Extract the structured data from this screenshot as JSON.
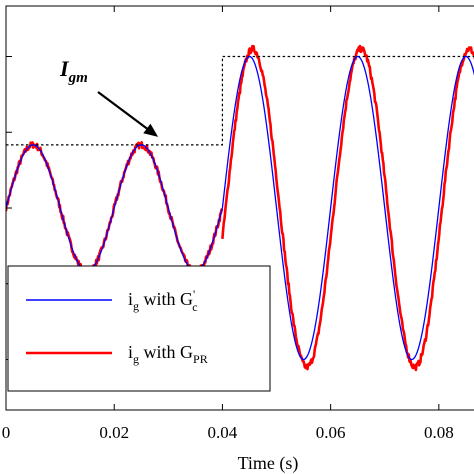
{
  "chart_data": {
    "type": "line",
    "xlabel": "Time (s)",
    "xlim": [
      0,
      0.095
    ],
    "ylim": [
      -1.6,
      1.6
    ],
    "x_ticks": [
      0,
      0.02,
      0.04,
      0.06,
      0.08
    ],
    "x_tick_labels": [
      "0",
      "0.02",
      "0.04",
      "0.06",
      "0.08"
    ],
    "y_ticks": [
      -1.2,
      -0.6,
      0,
      0.6,
      1.2
    ],
    "grid": false,
    "legend_position": "bottom-left",
    "annotation": {
      "label": "I",
      "label_subscript": "gm",
      "target": [
        0.027,
        0.5
      ]
    },
    "series": [
      {
        "name": "i_g with G_c'",
        "legend_main": "i",
        "legend_sub": "g",
        "legend_mid": " with G",
        "legend_sub2": "c",
        "legend_sup": "'",
        "color": "#0000ff",
        "style": "solid",
        "segments": [
          {
            "t_start": 0.0,
            "t_end": 0.04,
            "amplitude": 0.5,
            "period": 0.02,
            "phase_zero_at": 0.0
          },
          {
            "t_start": 0.04,
            "t_end": 0.095,
            "amplitude": 1.2,
            "period": 0.02,
            "phase_zero_at": 0.04
          }
        ]
      },
      {
        "name": "i_g with G_PR",
        "legend_main": "i",
        "legend_sub": "g",
        "legend_mid": " with G",
        "legend_sub2": "PR",
        "legend_sup": "",
        "color": "#ff0000",
        "style": "solid-noisy",
        "segments": [
          {
            "t_start": 0.0,
            "t_end": 0.04,
            "amplitude": 0.5,
            "period": 0.02,
            "phase_zero_at": 0.0
          },
          {
            "t_start": 0.04,
            "t_end": 0.095,
            "amplitude": 1.26,
            "period": 0.02,
            "phase_zero_at": 0.0406
          }
        ]
      },
      {
        "name": "I_gm",
        "color": "#000000",
        "style": "dotted",
        "steps": [
          {
            "t_start": 0.0,
            "t_end": 0.04,
            "value": 0.5
          },
          {
            "t_start": 0.04,
            "t_end": 0.095,
            "value": 1.2
          }
        ]
      }
    ]
  }
}
